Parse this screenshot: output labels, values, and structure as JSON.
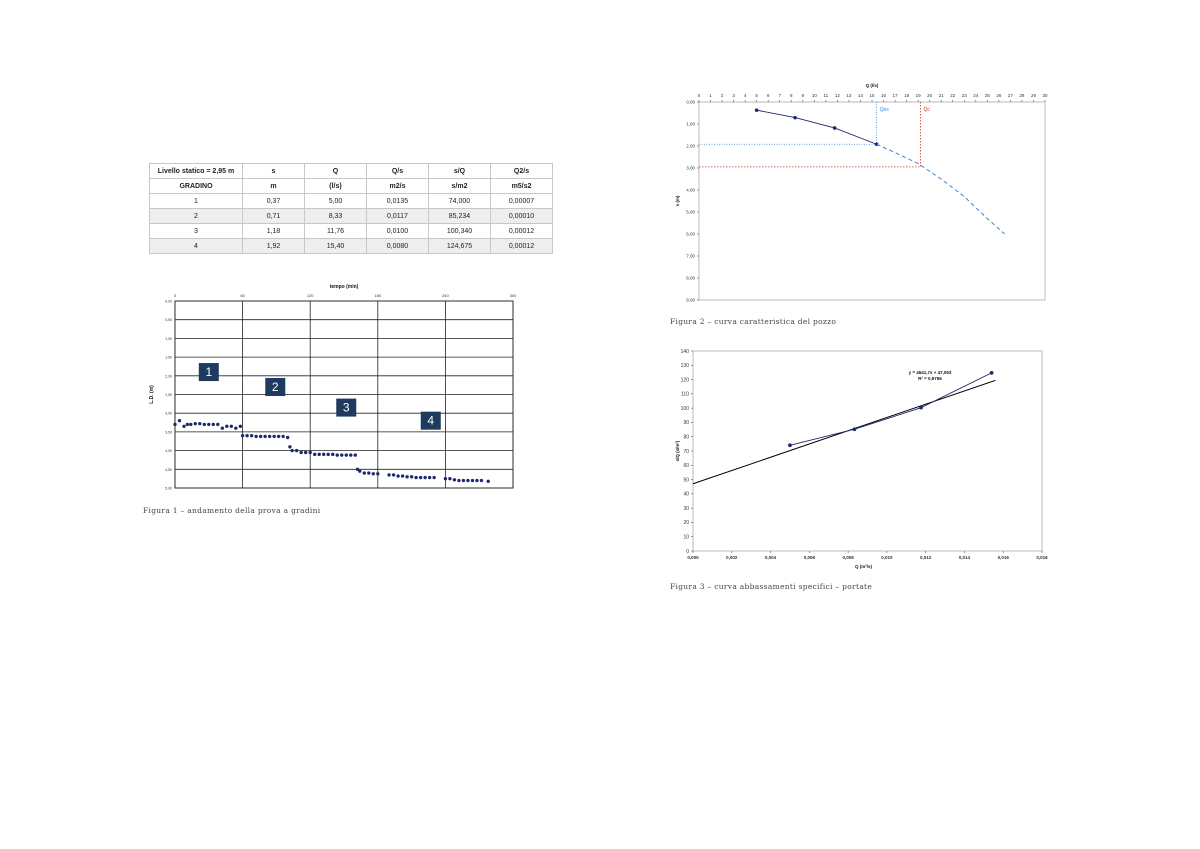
{
  "table": {
    "header1": [
      "Livello statico = 2,95 m",
      "s",
      "Q",
      "Q/s",
      "s/Q",
      "Q2/s"
    ],
    "header2": [
      "GRADINO",
      "m",
      "(l/s)",
      "m2/s",
      "s/m2",
      "m5/s2"
    ],
    "rows": [
      [
        "1",
        "0,37",
        "5,00",
        "0,0135",
        "74,000",
        "0,00007"
      ],
      [
        "2",
        "0,71",
        "8,33",
        "0,0117",
        "85,234",
        "0,00010"
      ],
      [
        "3",
        "1,18",
        "11,76",
        "0,0100",
        "100,340",
        "0,00012"
      ],
      [
        "4",
        "1,92",
        "15,40",
        "0,0080",
        "124,675",
        "0,00012"
      ]
    ]
  },
  "captions": {
    "fig1": "Figura 1 – andamento della prova a gradini",
    "fig2": "Figura 2 – curva caratteristica del pozzo",
    "fig3": "Figura 3 – curva abbassamenti specifici – portate"
  },
  "chart_data": [
    {
      "type": "scatter",
      "xlabel": "tempo (min)",
      "ylabel": "L.D. (m)",
      "xticks": [
        "0",
        "60",
        "120",
        "180",
        "240",
        "300"
      ],
      "yticks": [
        "0,00",
        "0,50",
        "1,00",
        "1,50",
        "2,00",
        "2,50",
        "3,00",
        "3,50",
        "4,00",
        "4,50",
        "5,00"
      ],
      "xlim": [
        0,
        300
      ],
      "ylim": [
        0,
        5
      ],
      "y_inverted": true,
      "color": "#1f2a6e",
      "step_labels": [
        {
          "text": "1",
          "x": 30,
          "y": 1.9
        },
        {
          "text": "2",
          "x": 89,
          "y": 2.3
        },
        {
          "text": "3",
          "x": 152,
          "y": 2.85
        },
        {
          "text": "4",
          "x": 227,
          "y": 3.2
        }
      ],
      "step_label_bg": "#1f3a5f",
      "x": [
        0,
        4,
        8,
        11,
        14,
        18,
        22,
        26,
        30,
        34,
        38,
        42,
        46,
        50,
        54,
        58,
        60,
        64,
        68,
        72,
        76,
        80,
        84,
        88,
        92,
        96,
        100,
        102,
        104,
        108,
        112,
        116,
        120,
        124,
        128,
        132,
        136,
        140,
        144,
        148,
        152,
        156,
        160,
        162,
        164,
        168,
        172,
        176,
        180,
        190,
        194,
        198,
        202,
        206,
        210,
        214,
        218,
        222,
        226,
        230,
        240,
        244,
        248,
        252,
        256,
        260,
        264,
        268,
        272,
        278
      ],
      "y": [
        3.3,
        3.2,
        3.35,
        3.3,
        3.3,
        3.28,
        3.28,
        3.3,
        3.3,
        3.3,
        3.3,
        3.4,
        3.35,
        3.35,
        3.4,
        3.35,
        3.6,
        3.6,
        3.6,
        3.62,
        3.62,
        3.62,
        3.62,
        3.62,
        3.62,
        3.62,
        3.65,
        3.9,
        4.0,
        4.0,
        4.05,
        4.05,
        4.05,
        4.1,
        4.1,
        4.1,
        4.1,
        4.1,
        4.12,
        4.12,
        4.12,
        4.12,
        4.12,
        4.5,
        4.55,
        4.6,
        4.6,
        4.62,
        4.62,
        4.65,
        4.65,
        4.68,
        4.68,
        4.7,
        4.7,
        4.72,
        4.72,
        4.72,
        4.72,
        4.72,
        4.75,
        4.75,
        4.78,
        4.8,
        4.8,
        4.8,
        4.8,
        4.8,
        4.8,
        4.82
      ]
    },
    {
      "type": "line",
      "xlabel": "Q (l/s)",
      "ylabel": "s (m)",
      "xticks": [
        "0",
        "1",
        "2",
        "3",
        "4",
        "5",
        "6",
        "7",
        "8",
        "9",
        "10",
        "11",
        "12",
        "13",
        "14",
        "15",
        "16",
        "17",
        "18",
        "19",
        "20",
        "21",
        "22",
        "23",
        "24",
        "25",
        "26",
        "27",
        "28",
        "29",
        "30"
      ],
      "yticks": [
        "0,00",
        "1,00",
        "2,00",
        "3,00",
        "4,00",
        "5,00",
        "6,00",
        "7,00",
        "8,00",
        "9,00"
      ],
      "xlim": [
        0,
        30
      ],
      "ylim": [
        0,
        9
      ],
      "y_inverted": true,
      "series": [
        {
          "x": [
            5,
            8.33,
            11.76,
            15.4
          ],
          "y": [
            0.37,
            0.71,
            1.18,
            1.92
          ],
          "color": "#1f2a6e"
        }
      ],
      "extrapolation": {
        "x": [
          15.4,
          17,
          19,
          21,
          23,
          25,
          26.5
        ],
        "y": [
          1.92,
          2.3,
          2.8,
          3.5,
          4.3,
          5.3,
          6.0
        ],
        "color": "#3a86d4"
      },
      "markers": [
        {
          "label": "Qes",
          "x": 15.4,
          "s": 1.92,
          "color": "#3a86d4"
        },
        {
          "label": "Qc",
          "x": 19.2,
          "s": 2.95,
          "color": "#c0392b"
        }
      ]
    },
    {
      "type": "scatter",
      "xlabel": "Q (m³/s)",
      "ylabel": "s/Q (s/m²)",
      "xticks": [
        "0,000",
        "0,002",
        "0,004",
        "0,006",
        "0,008",
        "0,010",
        "0,012",
        "0,014",
        "0,016",
        "0,018"
      ],
      "yticks": [
        "0",
        "10",
        "20",
        "30",
        "40",
        "50",
        "60",
        "70",
        "80",
        "90",
        "100",
        "110",
        "120",
        "130",
        "140"
      ],
      "xlim": [
        0,
        0.018
      ],
      "ylim": [
        0,
        140
      ],
      "series": [
        {
          "x": [
            0.005,
            0.00833,
            0.01176,
            0.0154
          ],
          "y": [
            74.0,
            85.234,
            100.34,
            124.675
          ],
          "color": "#1f2a6e"
        }
      ],
      "trendline": {
        "slope": 4641.7,
        "intercept": 47.053,
        "x": [
          0,
          0.0156
        ],
        "color": "#000000"
      },
      "equation": "y = 4641,7x + 47,053",
      "r2": "R² = 0,9756"
    }
  ]
}
